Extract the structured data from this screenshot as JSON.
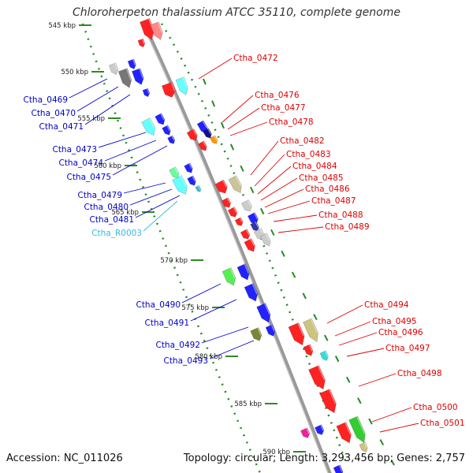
{
  "title": "Chloroherpeton thalassium ATCC 35110, complete genome",
  "accession": "Accession: NC_011026",
  "summary": "Topology: circular; Length: 3,293,456 bp; Genes: 2,757",
  "colors": {
    "backbone": "#999999",
    "ruler": "#2e8b22",
    "strand_rule": "#228b22",
    "label_plus": "#dd0000",
    "label_minus": "#0000cc",
    "label_rna": "#33bbdd"
  },
  "ruler_ticks": [
    {
      "label": "545 kbp"
    },
    {
      "label": "550 kbp"
    },
    {
      "label": "555 kbp"
    },
    {
      "label": "560 kbp"
    },
    {
      "label": "565 kbp"
    },
    {
      "label": "570 kbp"
    },
    {
      "label": "575 kbp"
    },
    {
      "label": "580 kbp"
    },
    {
      "label": "585 kbp"
    },
    {
      "label": "590 kbp"
    }
  ],
  "plus_labels": [
    "Ctha_0472",
    "Ctha_0476",
    "Ctha_0477",
    "Ctha_0478",
    "Ctha_0482",
    "Ctha_0483",
    "Ctha_0484",
    "Ctha_0485",
    "Ctha_0486",
    "Ctha_0487",
    "Ctha_0488",
    "Ctha_0489",
    "Ctha_0494",
    "Ctha_0495",
    "Ctha_0496",
    "Ctha_0497",
    "Ctha_0498",
    "Ctha_0500",
    "Ctha_0501"
  ],
  "minus_labels": [
    {
      "text": "Ctha_0469",
      "kind": "cds"
    },
    {
      "text": "Ctha_0470",
      "kind": "cds"
    },
    {
      "text": "Ctha_0471",
      "kind": "cds"
    },
    {
      "text": "Ctha_0473",
      "kind": "cds"
    },
    {
      "text": "Ctha_0474",
      "kind": "cds"
    },
    {
      "text": "Ctha_0475",
      "kind": "cds"
    },
    {
      "text": "Ctha_0479",
      "kind": "cds"
    },
    {
      "text": "Ctha_0480",
      "kind": "cds"
    },
    {
      "text": "Ctha_0481",
      "kind": "cds"
    },
    {
      "text": "Ctha_R0003",
      "kind": "rna"
    },
    {
      "text": "Ctha_0490",
      "kind": "cds"
    },
    {
      "text": "Ctha_0491",
      "kind": "cds"
    },
    {
      "text": "Ctha_0492",
      "kind": "cds"
    },
    {
      "text": "Ctha_0493",
      "kind": "cds"
    }
  ]
}
